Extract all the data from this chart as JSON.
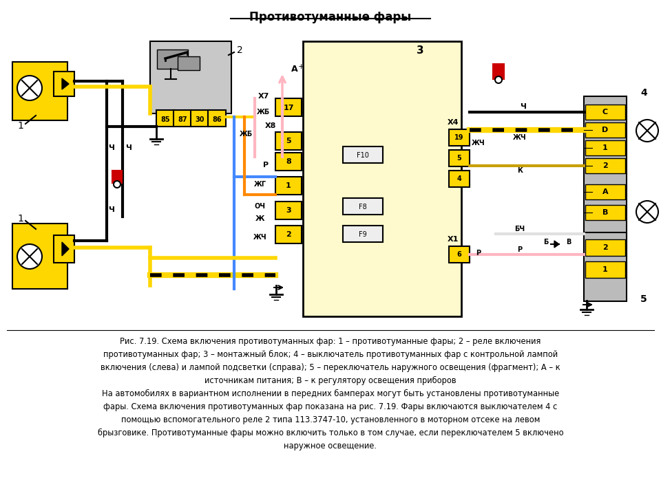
{
  "title": "Противотуманные фары",
  "background_color": "#ffffff",
  "caption_line1": "Рис. 7.19. Схема включения противотуманных фар: 1 – противотуманные фары; 2 – реле включения",
  "caption_line2": "противотуманных фар; 3 – монтажный блок; 4 – выключатель противотуманных фар с контрольной лампой",
  "caption_line3": "включения (слева) и лампой подсветки (справа); 5 – переключатель наружного освещения (фрагмент); А – к",
  "caption_line4": "источникам питания; В – к регулятору освещения приборов",
  "caption_line5": "На автомобилях в вариантном исполнении в передних бамперах могут быть установлены противотуманные",
  "caption_line6": "фары. Схема включения противотуманных фар показана на рис. 7.19. Фары включаются выключателем 4 с",
  "caption_line7": "помощью вспомогательного реле 2 типа 113.3747-10, установленного в моторном отсеке на левом",
  "caption_line8": "брызговике. Противотуманные фары можно включить только в том случае, если переключателем 5 включено",
  "caption_line9": "наружное освещение.",
  "yellow": "#FFD700",
  "gray_light": "#C8C8C8",
  "black": "#000000",
  "white": "#ffffff",
  "pink": "#FFB6C1",
  "blue": "#4488FF",
  "orange": "#FF8800",
  "red": "#CC0000"
}
